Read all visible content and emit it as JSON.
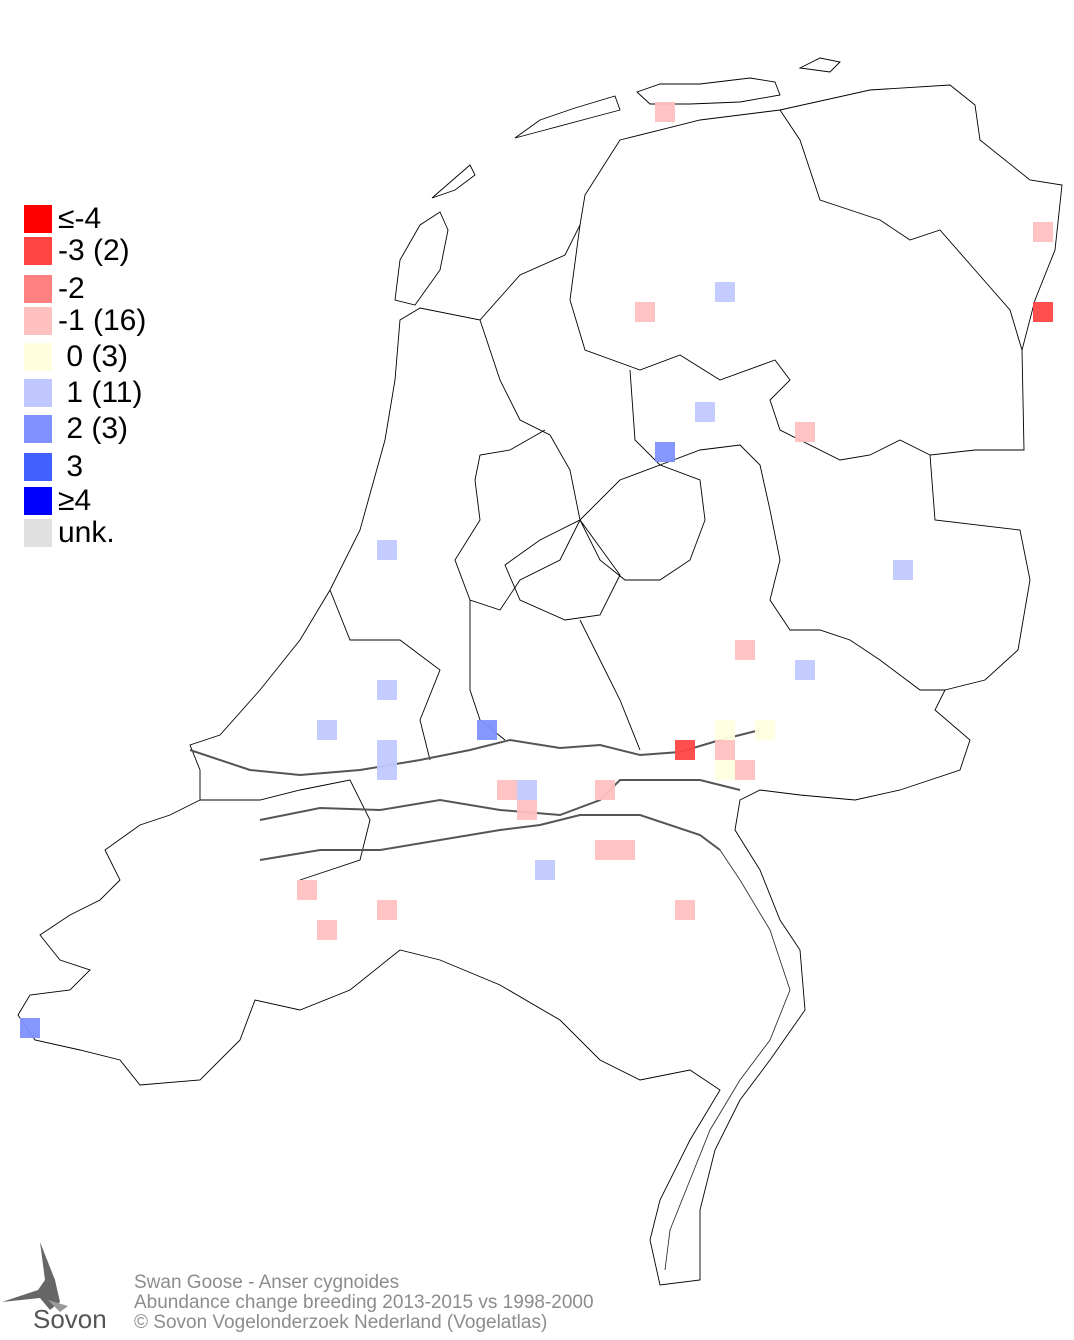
{
  "legend": [
    {
      "label": "≤-4",
      "value": -4,
      "color": "#ff0000"
    },
    {
      "label": "-3 (2)",
      "value": -3,
      "color": "#ff4444"
    },
    {
      "label": "-2",
      "value": -2,
      "color": "#ff8080"
    },
    {
      "label": "-1 (16)",
      "value": -1,
      "color": "#ffc0c0"
    },
    {
      "label": " 0 (3)",
      "value": 0,
      "color": "#ffffe0"
    },
    {
      "label": " 1 (11)",
      "value": 1,
      "color": "#c0c8ff"
    },
    {
      "label": " 2 (3)",
      "value": 2,
      "color": "#8090ff"
    },
    {
      "label": " 3",
      "value": 3,
      "color": "#4060ff"
    },
    {
      "label": "≥4",
      "value": 4,
      "color": "#0000ff"
    },
    {
      "label": "unk.",
      "value": null,
      "color": "#e0e0e0"
    }
  ],
  "cells": [
    -1,
    -1,
    -3,
    1,
    -1,
    1,
    2,
    -1,
    1,
    1,
    -1,
    1,
    1,
    1,
    2,
    1,
    1,
    -3,
    0,
    0,
    -1,
    0,
    -1,
    -1,
    1,
    -1,
    -1,
    -1,
    -1,
    1,
    -1,
    -1,
    -1,
    -1,
    2
  ],
  "footer": {
    "species": "Swan Goose - Anser cygnoides",
    "subtitle": "Abundance change breeding  2013-2015 vs 1998-2000",
    "copyright": "© Sovon Vogelonderzoek Nederland (Vogelatlas)"
  },
  "logo": {
    "text": "Sovon"
  }
}
